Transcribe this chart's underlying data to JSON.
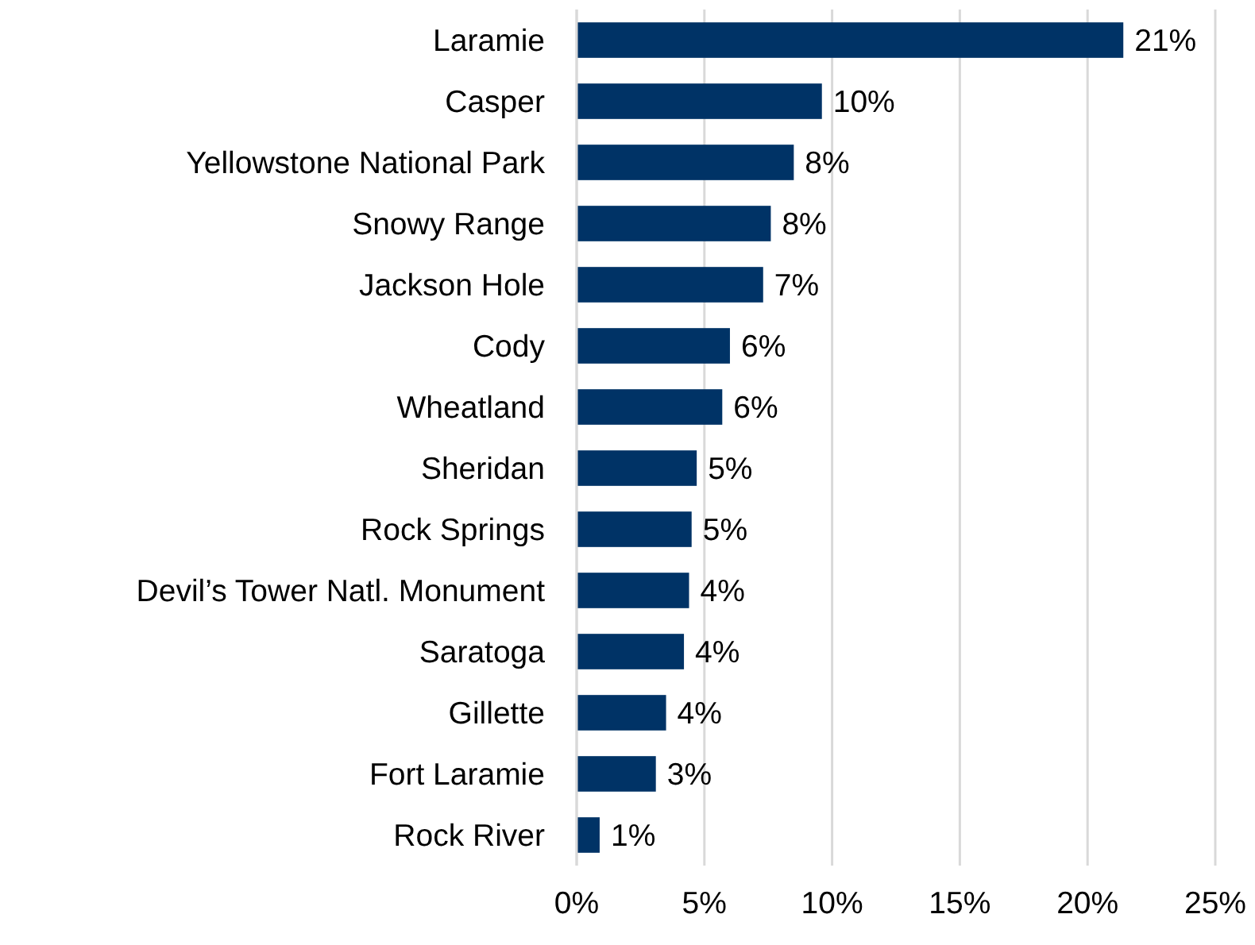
{
  "chart_data": {
    "type": "bar",
    "orientation": "horizontal",
    "categories": [
      "Laramie",
      "Casper",
      "Yellowstone National Park",
      "Snowy Range",
      "Jackson Hole",
      "Cody",
      "Wheatland",
      "Sheridan",
      "Rock Springs",
      "Devil’s Tower Natl. Monument",
      "Saratoga",
      "Gillette",
      "Fort Laramie",
      "Rock River"
    ],
    "values": [
      21.4,
      9.6,
      8.5,
      7.6,
      7.3,
      6.0,
      5.7,
      4.7,
      4.5,
      4.4,
      4.2,
      3.5,
      3.1,
      0.9
    ],
    "value_labels": [
      "21%",
      "10%",
      "8%",
      "8%",
      "7%",
      "6%",
      "6%",
      "5%",
      "5%",
      "4%",
      "4%",
      "4%",
      "3%",
      "1%"
    ],
    "color": "#003366",
    "xlim": [
      0,
      25
    ],
    "xticks": [
      {
        "value": 0,
        "label": "0%"
      },
      {
        "value": 5,
        "label": "5%"
      },
      {
        "value": 10,
        "label": "10%"
      },
      {
        "value": 15,
        "label": "15%"
      },
      {
        "value": 20,
        "label": "20%"
      },
      {
        "value": 25,
        "label": "25%"
      }
    ],
    "grid": "x"
  }
}
